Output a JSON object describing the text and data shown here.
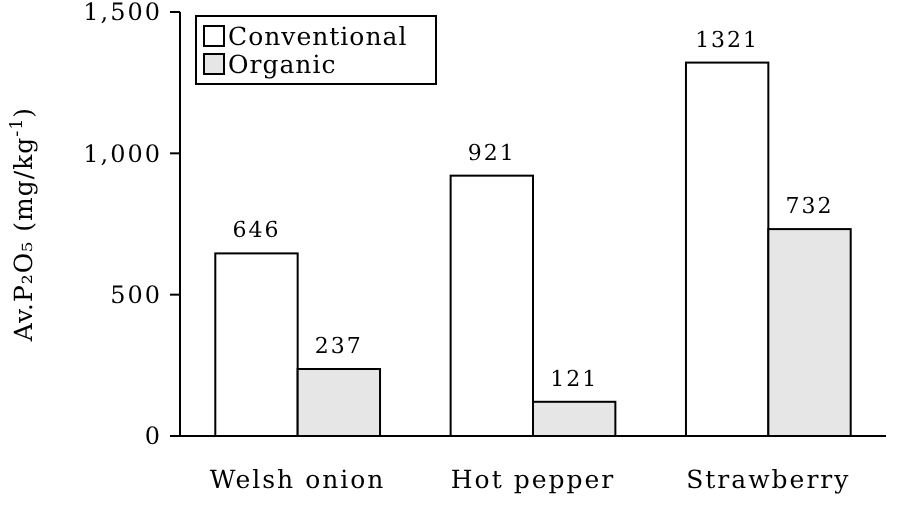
{
  "chart_data": {
    "type": "bar",
    "ylabel": "Av.P₂O₅ (mg/kg$^{-1}$)",
    "categories": [
      "Welsh onion",
      "Hot pepper",
      "Strawberry"
    ],
    "series": [
      {
        "name": "Conventional",
        "color": "#ffffff",
        "values": [
          646,
          921,
          1321
        ]
      },
      {
        "name": "Organic",
        "color": "#e6e6e6",
        "values": [
          237,
          121,
          732
        ]
      }
    ],
    "ylim": [
      0,
      1500
    ],
    "yticks": [
      0,
      {
        "value": 500,
        "label": "500"
      },
      {
        "value": 1000,
        "label": "1,000"
      },
      {
        "value": 1500,
        "label": "1,500"
      }
    ],
    "grid": false,
    "legend": "top left",
    "data_labels": true
  }
}
